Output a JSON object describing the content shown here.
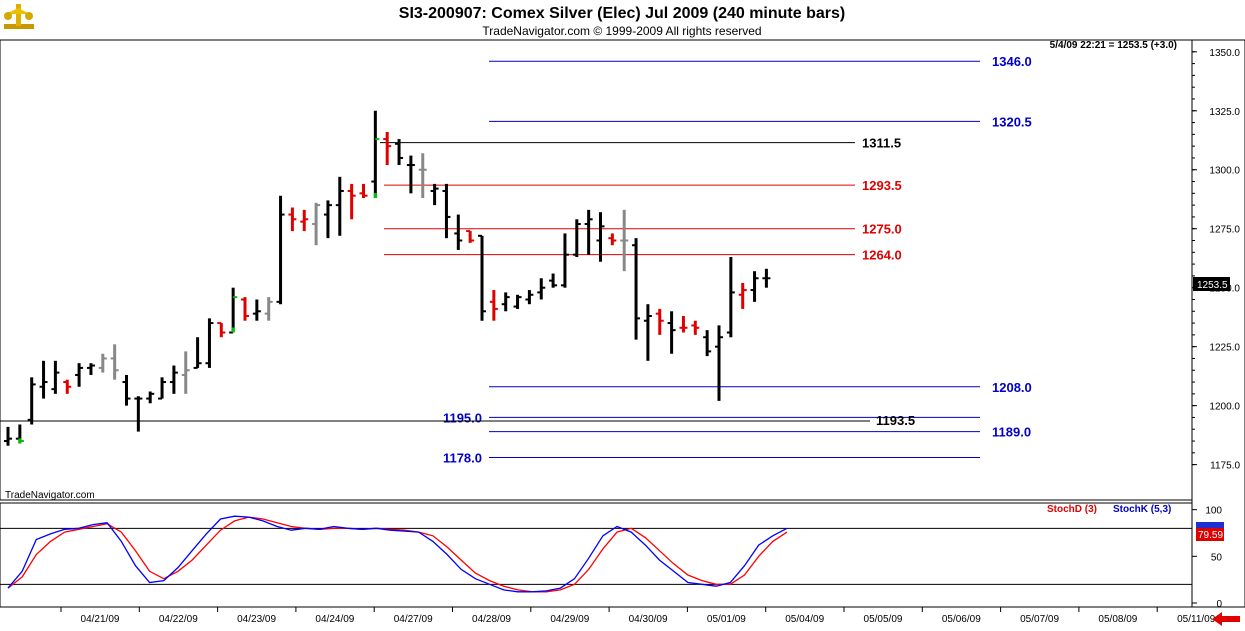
{
  "header": {
    "title": "SI3-200907:  Comex Silver (Elec) Jul 2009  (240 minute bars)",
    "copyright": "TradeNavigator.com © 1999-2009 All rights reserved",
    "quote": "5/4/09 22:21 = 1253.5 (+3.0)",
    "watermark": "TradeNavigator.com",
    "logo_icon": "gold-scale-icon"
  },
  "price_tag": "1253.5",
  "stoch_tag": "79.59",
  "legend": {
    "stochd": "StochD (3)",
    "stochk": "StochK (5,3)"
  },
  "colors": {
    "up_bar": "#000000",
    "down_bar": "#e00000",
    "neutral_bar": "#888888",
    "tick_green": "#00c000",
    "blue_level": "#0000c8",
    "red_level": "#e00000",
    "black_level": "#000000",
    "stoch_k": "#0000ff",
    "stoch_d": "#ff0000",
    "nav_arrow": "#e00000"
  },
  "chart_data": {
    "type": "ohlc",
    "symbol": "SI3-200907",
    "y_range": [
      1160,
      1355
    ],
    "y_ticks": [
      "1350.0",
      "1325.0",
      "1300.0",
      "1275.0",
      "1250.0",
      "1225.0",
      "1200.0",
      "1175.0"
    ],
    "y_tick_values": [
      1350,
      1325,
      1300,
      1275,
      1250,
      1225,
      1200,
      1175
    ],
    "x_ticks": [
      "04/21/09",
      "04/22/09",
      "04/23/09",
      "04/24/09",
      "04/27/09",
      "04/28/09",
      "04/29/09",
      "04/30/09",
      "05/01/09",
      "05/04/09",
      "05/05/09",
      "05/06/09",
      "05/07/09",
      "05/08/09",
      "05/11/09"
    ],
    "bars": [
      {
        "h": 1191,
        "l": 1183,
        "o": 1185,
        "c": 1186,
        "col": "k"
      },
      {
        "h": 1192,
        "l": 1184,
        "o": 1186,
        "c": 1185,
        "col": "g"
      },
      {
        "h": 1212,
        "l": 1192,
        "o": 1194,
        "c": 1209,
        "col": "k"
      },
      {
        "h": 1219,
        "l": 1203,
        "o": 1208,
        "c": 1210,
        "col": "k"
      },
      {
        "h": 1219,
        "l": 1205,
        "o": 1207,
        "c": 1214,
        "col": "k"
      },
      {
        "h": 1211,
        "l": 1205,
        "o": 1210,
        "c": 1208,
        "col": "r"
      },
      {
        "h": 1218,
        "l": 1208,
        "o": 1213,
        "c": 1216,
        "col": "k"
      },
      {
        "h": 1218,
        "l": 1213,
        "o": 1216,
        "c": 1217,
        "col": "k"
      },
      {
        "h": 1222,
        "l": 1214,
        "o": 1216,
        "c": 1220,
        "col": "n"
      },
      {
        "h": 1226,
        "l": 1211,
        "o": 1220,
        "c": 1215,
        "col": "n"
      },
      {
        "h": 1213,
        "l": 1200,
        "o": 1210,
        "c": 1203,
        "col": "k"
      },
      {
        "h": 1204,
        "l": 1189,
        "o": 1203,
        "c": 1203,
        "col": "k"
      },
      {
        "h": 1206,
        "l": 1201,
        "o": 1203,
        "c": 1205,
        "col": "k"
      },
      {
        "h": 1212,
        "l": 1203,
        "o": 1203,
        "c": 1210,
        "col": "k"
      },
      {
        "h": 1217,
        "l": 1205,
        "o": 1210,
        "c": 1214,
        "col": "k"
      },
      {
        "h": 1223,
        "l": 1205,
        "o": 1213,
        "c": 1215,
        "col": "n"
      },
      {
        "h": 1229,
        "l": 1216,
        "o": 1216,
        "c": 1218,
        "col": "k"
      },
      {
        "h": 1237,
        "l": 1216,
        "o": 1218,
        "c": 1235,
        "col": "k"
      },
      {
        "h": 1235,
        "l": 1229,
        "o": 1235,
        "c": 1231,
        "col": "r"
      },
      {
        "h": 1250,
        "l": 1231,
        "o": 1231,
        "c": 1246,
        "col": "g"
      },
      {
        "h": 1246,
        "l": 1236,
        "o": 1245,
        "c": 1238,
        "col": "r"
      },
      {
        "h": 1245,
        "l": 1236,
        "o": 1239,
        "c": 1240,
        "col": "k"
      },
      {
        "h": 1246,
        "l": 1236,
        "o": 1239,
        "c": 1244,
        "col": "n"
      },
      {
        "h": 1289,
        "l": 1243,
        "o": 1244,
        "c": 1281,
        "col": "k"
      },
      {
        "h": 1284,
        "l": 1274,
        "o": 1281,
        "c": 1279,
        "col": "r"
      },
      {
        "h": 1283,
        "l": 1274,
        "o": 1278,
        "c": 1279,
        "col": "r"
      },
      {
        "h": 1286,
        "l": 1268,
        "o": 1277,
        "c": 1285,
        "col": "n"
      },
      {
        "h": 1287,
        "l": 1271,
        "o": 1281,
        "c": 1285,
        "col": "k"
      },
      {
        "h": 1297,
        "l": 1272,
        "o": 1285,
        "c": 1291,
        "col": "k"
      },
      {
        "h": 1294,
        "l": 1279,
        "o": 1291,
        "c": 1289,
        "col": "r"
      },
      {
        "h": 1294,
        "l": 1288,
        "o": 1290,
        "c": 1289,
        "col": "r"
      },
      {
        "h": 1325,
        "l": 1288,
        "o": 1295,
        "c": 1313,
        "col": "g"
      },
      {
        "h": 1316,
        "l": 1302,
        "o": 1313,
        "c": 1310,
        "col": "r"
      },
      {
        "h": 1313,
        "l": 1302,
        "o": 1311,
        "c": 1305,
        "col": "k"
      },
      {
        "h": 1306,
        "l": 1290,
        "o": 1302,
        "c": 1302,
        "col": "k"
      },
      {
        "h": 1307,
        "l": 1288,
        "o": 1300,
        "c": 1300,
        "col": "n"
      },
      {
        "h": 1294,
        "l": 1285,
        "o": 1291,
        "c": 1292,
        "col": "k"
      },
      {
        "h": 1294,
        "l": 1271,
        "o": 1291,
        "c": 1280,
        "col": "k"
      },
      {
        "h": 1281,
        "l": 1266,
        "o": 1273,
        "c": 1270,
        "col": "k"
      },
      {
        "h": 1274,
        "l": 1269,
        "o": 1274,
        "c": 1270,
        "col": "r"
      },
      {
        "h": 1272,
        "l": 1236,
        "o": 1272,
        "c": 1240,
        "col": "k"
      },
      {
        "h": 1249,
        "l": 1236,
        "o": 1244,
        "c": 1241,
        "col": "r"
      },
      {
        "h": 1248,
        "l": 1240,
        "o": 1243,
        "c": 1246,
        "col": "k"
      },
      {
        "h": 1247,
        "l": 1241,
        "o": 1242,
        "c": 1246,
        "col": "k"
      },
      {
        "h": 1249,
        "l": 1243,
        "o": 1245,
        "c": 1247,
        "col": "k"
      },
      {
        "h": 1254,
        "l": 1245,
        "o": 1248,
        "c": 1250,
        "col": "k"
      },
      {
        "h": 1256,
        "l": 1250,
        "o": 1253,
        "c": 1251,
        "col": "k"
      },
      {
        "h": 1273,
        "l": 1250,
        "o": 1251,
        "c": 1264,
        "col": "k"
      },
      {
        "h": 1279,
        "l": 1263,
        "o": 1264,
        "c": 1277,
        "col": "k"
      },
      {
        "h": 1283,
        "l": 1264,
        "o": 1277,
        "c": 1279,
        "col": "k"
      },
      {
        "h": 1282,
        "l": 1261,
        "o": 1270,
        "c": 1276,
        "col": "k"
      },
      {
        "h": 1273,
        "l": 1268,
        "o": 1271,
        "c": 1270,
        "col": "r"
      },
      {
        "h": 1283,
        "l": 1257,
        "o": 1270,
        "c": 1270,
        "col": "n"
      },
      {
        "h": 1271,
        "l": 1228,
        "o": 1268,
        "c": 1237,
        "col": "k"
      },
      {
        "h": 1243,
        "l": 1219,
        "o": 1236,
        "c": 1238,
        "col": "k"
      },
      {
        "h": 1241,
        "l": 1230,
        "o": 1239,
        "c": 1236,
        "col": "r"
      },
      {
        "h": 1240,
        "l": 1222,
        "o": 1235,
        "c": 1232,
        "col": "k"
      },
      {
        "h": 1238,
        "l": 1231,
        "o": 1233,
        "c": 1233,
        "col": "r"
      },
      {
        "h": 1236,
        "l": 1230,
        "o": 1234,
        "c": 1233,
        "col": "r"
      },
      {
        "h": 1232,
        "l": 1221,
        "o": 1229,
        "c": 1223,
        "col": "k"
      },
      {
        "h": 1234,
        "l": 1202,
        "o": 1225,
        "c": 1229,
        "col": "k"
      },
      {
        "h": 1263,
        "l": 1229,
        "o": 1231,
        "c": 1248,
        "col": "k"
      },
      {
        "h": 1252,
        "l": 1241,
        "o": 1247,
        "c": 1249,
        "col": "r"
      },
      {
        "h": 1257,
        "l": 1244,
        "o": 1249,
        "c": 1254,
        "col": "k"
      },
      {
        "h": 1258,
        "l": 1250,
        "o": 1254,
        "c": 1254,
        "col": "k"
      }
    ],
    "levels": [
      {
        "value": 1346.0,
        "label": "1346.0",
        "color": "blue",
        "label_side": "right"
      },
      {
        "value": 1320.5,
        "label": "1320.5",
        "color": "blue",
        "label_side": "right"
      },
      {
        "value": 1311.5,
        "label": "1311.5",
        "color": "black",
        "label_side": "right"
      },
      {
        "value": 1293.5,
        "label": "1293.5",
        "color": "red",
        "label_side": "right"
      },
      {
        "value": 1275.0,
        "label": "1275.0",
        "color": "red",
        "label_side": "right"
      },
      {
        "value": 1264.0,
        "label": "1264.0",
        "color": "red",
        "label_side": "right"
      },
      {
        "value": 1208.0,
        "label": "1208.0",
        "color": "blue",
        "label_side": "right"
      },
      {
        "value": 1195.0,
        "label": "1195.0",
        "color": "blue",
        "label_side": "left"
      },
      {
        "value": 1193.5,
        "label": "1193.5",
        "color": "black",
        "label_side": "mid"
      },
      {
        "value": 1189.0,
        "label": "1189.0",
        "color": "blue",
        "label_side": "right"
      },
      {
        "value": 1178.0,
        "label": "1178.0",
        "color": "blue",
        "label_side": "left"
      }
    ],
    "stochastic": {
      "range": [
        0,
        105
      ],
      "ticks": [
        "100",
        "50",
        "0"
      ],
      "tick_values": [
        100,
        50,
        0
      ],
      "overbought": 80,
      "oversold": 20,
      "k": [
        16,
        34,
        68,
        74,
        79,
        80,
        84,
        86,
        66,
        40,
        22,
        24,
        38,
        56,
        74,
        90,
        93,
        92,
        88,
        82,
        78,
        80,
        79,
        82,
        80,
        79,
        80,
        78,
        77,
        76,
        66,
        52,
        36,
        26,
        20,
        14,
        12,
        12,
        13,
        16,
        26,
        48,
        72,
        82,
        76,
        62,
        46,
        34,
        22,
        20,
        18,
        22,
        40,
        62,
        72,
        80
      ],
      "d": [
        16,
        28,
        52,
        66,
        76,
        79,
        82,
        85,
        76,
        56,
        34,
        26,
        34,
        46,
        62,
        78,
        88,
        92,
        90,
        86,
        82,
        80,
        79,
        80,
        80,
        79,
        80,
        79,
        78,
        76,
        72,
        60,
        46,
        32,
        24,
        18,
        14,
        12,
        12,
        14,
        20,
        36,
        58,
        76,
        80,
        70,
        56,
        42,
        30,
        24,
        20,
        20,
        30,
        50,
        66,
        76
      ]
    }
  }
}
